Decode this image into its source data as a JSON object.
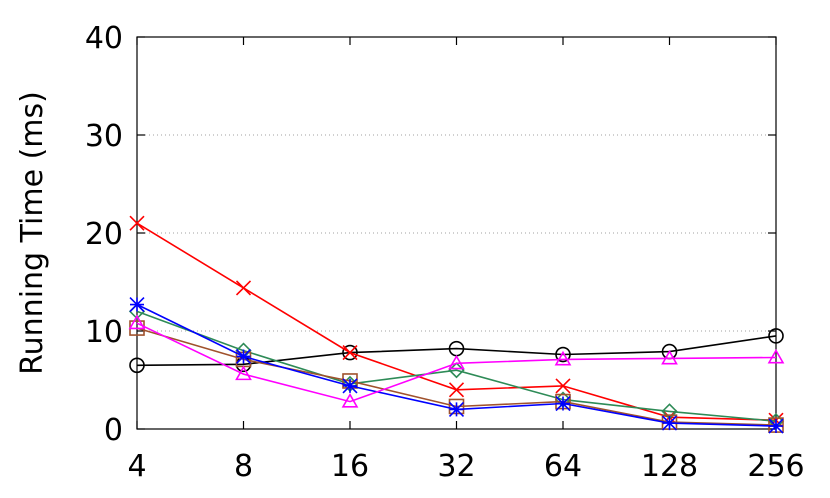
{
  "chart_data": {
    "type": "line",
    "title": "",
    "xlabel": "",
    "ylabel": "Running Time (ms)",
    "x_scale": "log2",
    "x": [
      4,
      8,
      16,
      32,
      64,
      128,
      256
    ],
    "x_tick_labels": [
      "4",
      "8",
      "16",
      "32",
      "64",
      "128",
      "256"
    ],
    "ylim": [
      0,
      40
    ],
    "y_ticks": [
      0,
      10,
      20,
      30,
      40
    ],
    "y_tick_labels": [
      "0",
      "10",
      "20",
      "30",
      "40"
    ],
    "grid": "horizontal-dotted",
    "legend": "none",
    "series": [
      {
        "marker": "circle",
        "color": "#000000",
        "values": [
          6.5,
          6.6,
          7.8,
          8.2,
          7.6,
          7.9,
          9.5
        ]
      },
      {
        "marker": "x",
        "color": "#ff0000",
        "values": [
          21.0,
          14.4,
          7.8,
          4.0,
          4.4,
          1.2,
          0.9
        ]
      },
      {
        "marker": "diamond",
        "color": "#2e8b57",
        "values": [
          12.0,
          8.0,
          4.6,
          6.0,
          3.0,
          1.8,
          0.8
        ]
      },
      {
        "marker": "square",
        "color": "#a0522d",
        "values": [
          10.3,
          7.1,
          4.9,
          2.3,
          2.8,
          0.7,
          0.4
        ]
      },
      {
        "marker": "star",
        "color": "#0000ff",
        "values": [
          12.7,
          7.4,
          4.4,
          2.0,
          2.6,
          0.6,
          0.3
        ]
      },
      {
        "marker": "triangle",
        "color": "#ff00ff",
        "values": [
          10.8,
          5.6,
          2.8,
          6.7,
          7.1,
          7.2,
          7.3
        ]
      }
    ]
  }
}
